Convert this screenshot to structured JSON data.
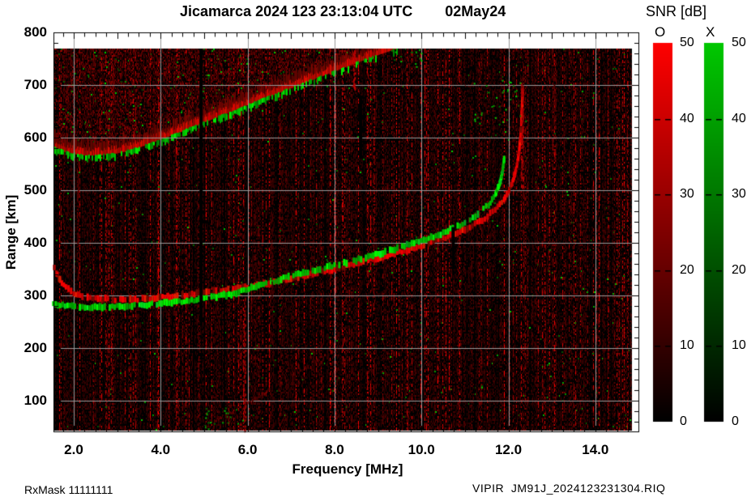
{
  "title": "Jicamarca 2024 123 23:13:04 UTC        02May24",
  "footer": {
    "left": "RxMask 11111111",
    "right": "VIPIR  JM91J_2024123231304.RIQ"
  },
  "colorbar": {
    "title": "SNR [dB]",
    "o_label": "O",
    "x_label": "X",
    "min": 0,
    "max": 50,
    "tick_labels": [
      "50",
      "40",
      "30",
      "20",
      "10",
      "0"
    ],
    "tick_values": [
      50,
      40,
      30,
      20,
      10,
      0
    ],
    "o_top_color": "#ff0000",
    "x_top_color": "#00c800",
    "bottom_color": "#000000"
  },
  "chart_data": {
    "type": "heatmap",
    "title": "Jicamarca 2024 123 23:13:04 UTC  02May24",
    "xlabel": "Frequency [MHz]",
    "ylabel": "Range [km]",
    "value_label": "SNR [dB]",
    "xlim": [
      1.53,
      14.85
    ],
    "ylim": [
      42,
      800
    ],
    "xticks": [
      2,
      4,
      6,
      8,
      10,
      12,
      14
    ],
    "xtick_labels": [
      "2.0",
      "4.0",
      "6.0",
      "8.0",
      "10.0",
      "12.0",
      "14.0"
    ],
    "yticks": [
      800,
      700,
      600,
      500,
      400,
      300,
      200,
      100
    ],
    "ytick_labels": [
      "800",
      "700",
      "600",
      "500",
      "400",
      "300",
      "200",
      "100"
    ],
    "grid": true,
    "grid_color": "#9a9a9a",
    "background_color": "#000000",
    "snr_scale": {
      "min": 0,
      "max": 50,
      "o_color": "red",
      "x_color": "green"
    },
    "series": [
      {
        "name": "F-layer trace O-mode (red), h'(f) in km",
        "color": "#ff0000",
        "points": [
          [
            1.55,
            352
          ],
          [
            1.68,
            330
          ],
          [
            1.82,
            315
          ],
          [
            2.0,
            305
          ],
          [
            2.2,
            299
          ],
          [
            2.5,
            295
          ],
          [
            2.9,
            292
          ],
          [
            3.3,
            292
          ],
          [
            3.7,
            294
          ],
          [
            4.1,
            297
          ],
          [
            4.5,
            300
          ],
          [
            5.0,
            305
          ],
          [
            5.5,
            311
          ],
          [
            6.0,
            317
          ],
          [
            6.5,
            324
          ],
          [
            7.0,
            332
          ],
          [
            7.5,
            341
          ],
          [
            8.0,
            350
          ],
          [
            8.5,
            360
          ],
          [
            9.0,
            371
          ],
          [
            9.5,
            382
          ],
          [
            10.0,
            394
          ],
          [
            10.5,
            408
          ],
          [
            11.0,
            425
          ],
          [
            11.4,
            443
          ],
          [
            11.7,
            463
          ],
          [
            11.9,
            483
          ],
          [
            12.05,
            505
          ],
          [
            12.15,
            530
          ],
          [
            12.22,
            558
          ],
          [
            12.27,
            592
          ],
          [
            12.3,
            630
          ],
          [
            12.32,
            668
          ],
          [
            12.33,
            700
          ]
        ]
      },
      {
        "name": "F-layer trace X-mode (green), h'(f) in km",
        "color": "#00dd00",
        "points": [
          [
            1.53,
            284
          ],
          [
            1.8,
            280
          ],
          [
            2.2,
            278
          ],
          [
            2.6,
            278
          ],
          [
            3.0,
            279
          ],
          [
            3.4,
            281
          ],
          [
            3.8,
            283
          ],
          [
            4.2,
            286
          ],
          [
            4.6,
            290
          ],
          [
            5.0,
            294
          ],
          [
            5.4,
            299
          ],
          [
            5.8,
            306
          ],
          [
            6.2,
            318
          ],
          [
            6.6,
            327
          ],
          [
            7.0,
            337
          ],
          [
            7.5,
            347
          ],
          [
            8.0,
            357
          ],
          [
            8.5,
            367
          ],
          [
            9.0,
            379
          ],
          [
            9.5,
            391
          ],
          [
            10.0,
            404
          ],
          [
            10.5,
            419
          ],
          [
            11.0,
            438
          ],
          [
            11.3,
            455
          ],
          [
            11.55,
            473
          ],
          [
            11.7,
            491
          ],
          [
            11.8,
            512
          ],
          [
            11.87,
            538
          ],
          [
            11.91,
            565
          ]
        ]
      },
      {
        "name": "spread/multiple echo band lower edge (km)",
        "color": "#cc2200",
        "points": [
          [
            1.53,
            582
          ],
          [
            1.8,
            572
          ],
          [
            2.2,
            566
          ],
          [
            2.6,
            566
          ],
          [
            3.0,
            570
          ],
          [
            3.5,
            581
          ],
          [
            4.0,
            596
          ],
          [
            4.5,
            612
          ],
          [
            5.0,
            629
          ],
          [
            5.5,
            645
          ],
          [
            6.0,
            662
          ],
          [
            6.5,
            678
          ],
          [
            7.0,
            694
          ],
          [
            7.5,
            710
          ],
          [
            8.0,
            726
          ],
          [
            8.5,
            742
          ],
          [
            9.0,
            757
          ],
          [
            9.5,
            771
          ],
          [
            10.0,
            786
          ],
          [
            10.7,
            800
          ]
        ]
      },
      {
        "name": "faint oblique low-range trace (km)",
        "color": "#660000",
        "points": [
          [
            4.95,
            46
          ],
          [
            5.4,
            66
          ],
          [
            5.9,
            90
          ],
          [
            6.4,
            114
          ],
          [
            6.9,
            140
          ],
          [
            7.4,
            166
          ],
          [
            7.9,
            192
          ],
          [
            8.4,
            218
          ],
          [
            8.85,
            240
          ]
        ]
      }
    ],
    "interference_streaks": [
      {
        "f": 2.1,
        "km": [
          330,
          560
        ],
        "rgb": [
          90,
          0,
          0
        ],
        "p": 0.5
      },
      {
        "f": 5.92,
        "km": [
          44,
          300
        ],
        "rgb": [
          150,
          0,
          0
        ],
        "p": 0.65
      },
      {
        "f": 6.55,
        "km": [
          300,
          520
        ],
        "rgb": [
          70,
          0,
          0
        ],
        "p": 0.45
      },
      {
        "f": 8.44,
        "km": [
          688,
          768
        ],
        "rgb": [
          190,
          0,
          0
        ],
        "p": 0.8
      },
      {
        "f": 12.31,
        "km": [
          508,
          705
        ],
        "rgb": [
          170,
          0,
          0
        ],
        "p": 0.6
      },
      {
        "f": 13.05,
        "km": [
          600,
          725
        ],
        "rgb": [
          80,
          0,
          0
        ],
        "p": 0.5
      }
    ],
    "black_gaps": [
      {
        "f": 4.93,
        "km": [
          250,
          770
        ],
        "w": 4
      },
      {
        "f": 8.6,
        "km": [
          560,
          680
        ],
        "w": 4
      },
      {
        "f": 10.73,
        "km": [
          350,
          430
        ],
        "w": 4
      }
    ],
    "green_clusters": [
      {
        "f": [
          11.2,
          12.4
        ],
        "km": [
          625,
          712
        ],
        "n": 35
      },
      {
        "f": [
          5.0,
          5.9
        ],
        "km": [
          45,
          95
        ],
        "n": 20
      },
      {
        "f": [
          9.3,
          10.2
        ],
        "km": [
          735,
          770
        ],
        "n": 14
      }
    ]
  }
}
